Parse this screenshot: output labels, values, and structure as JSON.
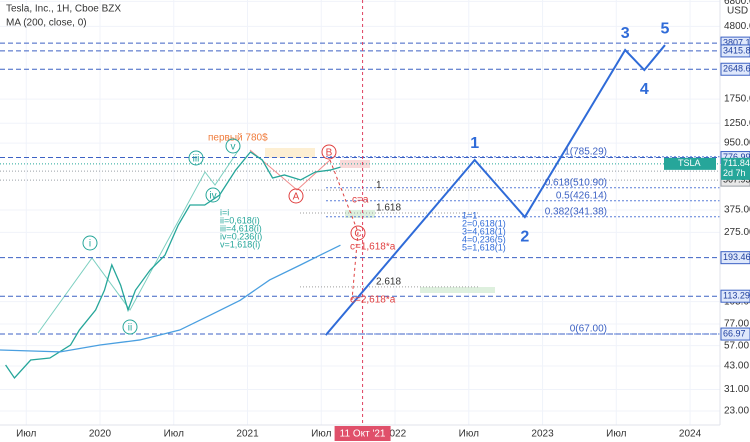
{
  "chart_data": {
    "type": "line",
    "title": "Tesla, Inc., 1H, Cboe BZX",
    "currency": "USD",
    "log_scale": true,
    "grid": true,
    "xlim": [
      2019.322,
      2024.203
    ],
    "ylim": [
      18.94,
      6928
    ],
    "xticks": [
      {
        "value": 2019.5,
        "label": "Июл"
      },
      2020,
      {
        "value": 2020.5,
        "label": "Июл"
      },
      2021,
      {
        "value": 2021.5,
        "label": "Июл"
      },
      2022,
      {
        "value": 2022.5,
        "label": "Июл"
      },
      2023,
      {
        "value": 2023.5,
        "label": "Июл"
      },
      2024
    ],
    "yticks": [
      {
        "value": 6800,
        "label": "6800.00"
      },
      {
        "value": 4800,
        "label": "4800.00"
      },
      {
        "value": 1750,
        "label": "1750.00"
      },
      {
        "value": 1250,
        "label": "1250.00"
      },
      {
        "value": 950,
        "label": "950.00"
      },
      {
        "value": 375,
        "label": "375.00"
      },
      {
        "value": 275,
        "label": "275.00"
      },
      {
        "value": 105,
        "label": "105.00"
      },
      {
        "value": 77,
        "label": "77.00"
      },
      {
        "value": 57,
        "label": "57.00"
      },
      {
        "value": 43,
        "label": "43.00"
      },
      {
        "value": 31,
        "label": "31.00"
      },
      {
        "value": 23,
        "label": "23.00"
      }
    ],
    "price_labels": [
      3807.14,
      {
        "value": 3415.8,
        "label": "3415.80"
      },
      2648.63,
      776.99,
      643.86,
      567.93,
      193.46,
      113.29,
      66.97
    ],
    "current_price": {
      "symbol": "TSLA",
      "value": 711.84,
      "countdown": "2d 7h"
    },
    "crosshair": {
      "x": 2021.78,
      "label": "11 Окт '21"
    },
    "series": [
      {
        "color": "#26a69a",
        "x": [
          2019.36,
          2019.42,
          2019.53,
          2019.66,
          2019.8,
          2019.86,
          2019.97,
          2020.03,
          2020.08,
          2020.14,
          2020.19,
          2020.24,
          2020.34,
          2020.44,
          2020.53,
          2020.61,
          2020.71,
          2020.81,
          2020.92,
          2021.02,
          2021.1,
          2021.17,
          2021.25,
          2021.36,
          2021.46,
          2021.56,
          2021.63
        ],
        "values": [
          43.6,
          36.4,
          46.7,
          48,
          57.5,
          70.8,
          93.5,
          123,
          175,
          132,
          93.5,
          123,
          163,
          200,
          304,
          402,
          402,
          461,
          653,
          839,
          751,
          585,
          610,
          569,
          636,
          653,
          680
        ]
      },
      {
        "name": "MA (200, close, 0)",
        "color": "#4a9fe0",
        "x": [
          2019.32,
          2019.73,
          2020.0,
          2020.27,
          2020.54,
          2020.75,
          2020.95,
          2021.15,
          2021.36,
          2021.49,
          2021.63
        ],
        "values": [
          53.7,
          52.3,
          57.5,
          61.7,
          70.8,
          87.3,
          107,
          142,
          175,
          200,
          230
        ]
      },
      {
        "color": "#2f6bd8",
        "x": [
          2021.53,
          2022.54,
          2022.88,
          2023.56,
          2023.69,
          2023.83
        ],
        "values": [
          66,
          751,
          340,
          3459,
          2620,
          3705
        ],
        "value_labels": [
          null,
          "1",
          "2",
          "3",
          "4",
          "5"
        ]
      }
    ],
    "fib_correction": [
      {
        "value": 494,
        "label": "1"
      },
      {
        "value": 360,
        "label": "1.618"
      },
      {
        "value": 129,
        "label": "2.618"
      }
    ],
    "fib_projection": [
      {
        "value": 785.29,
        "label": "1(785.29)"
      },
      {
        "value": 510.9,
        "label": "0.618(510.90)"
      },
      {
        "value": 426.14,
        "label": "0.5(426.14)"
      },
      {
        "value": 341.38,
        "label": "0.382(341.38)"
      },
      {
        "value": 67,
        "label": "0(67.00)"
      }
    ],
    "annotations": {
      "first": "первый 780$",
      "c_eq_a": "c=a",
      "c_1618": "c=1,618*a",
      "c_2618": "c=2,618*a",
      "abc": [
        "A",
        "B",
        "C"
      ],
      "minor_waves": [
        "i",
        "ii",
        "iii",
        "iv",
        "v"
      ],
      "minor_ratios": [
        "i=i",
        "ii=0,618(i)",
        "iii=4,618(i)",
        "iv=0,236(i)",
        "v=1,618(i)"
      ],
      "major_ratios": [
        "1=1",
        "2=0,618(1)",
        "3=4,618(1)",
        "4=0,236(5)",
        "5=1,618(1)"
      ]
    }
  }
}
